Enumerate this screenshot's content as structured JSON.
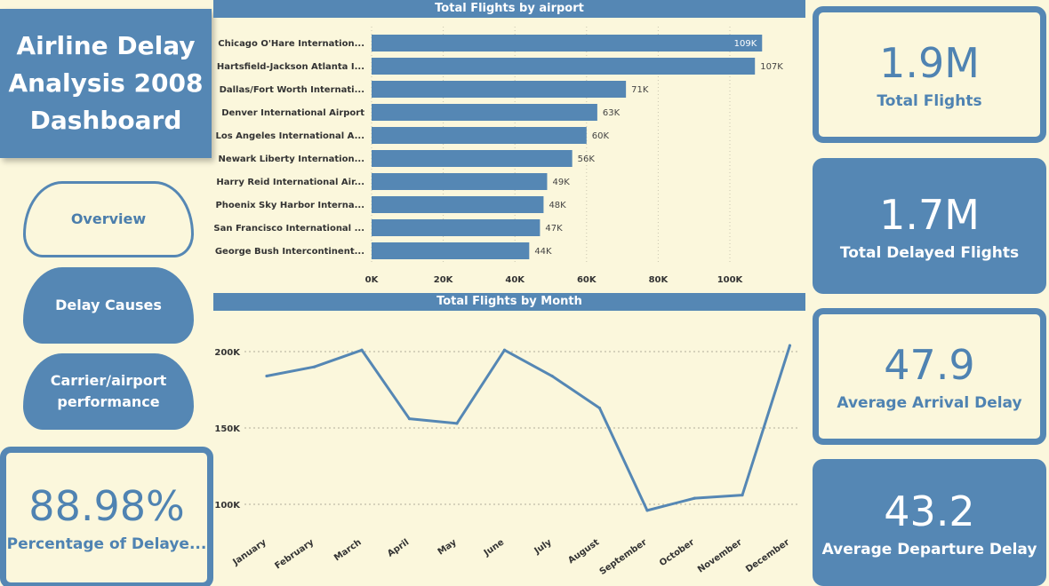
{
  "sidebar": {
    "title": "Airline Delay Analysis 2008 Dashboard",
    "nav": [
      {
        "label": "Overview"
      },
      {
        "label": "Delay Causes"
      },
      {
        "label": "Carrier/airport performance"
      }
    ],
    "kpi_percentage": {
      "value": "88.98%",
      "label": "Percentage of Delaye..."
    }
  },
  "kpis": [
    {
      "value": "1.9M",
      "label": "Total Flights"
    },
    {
      "value": "1.7M",
      "label": "Total Delayed Flights"
    },
    {
      "value": "47.9",
      "label": "Average Arrival Delay"
    },
    {
      "value": "43.2",
      "label": "Average Departure Delay"
    }
  ],
  "colors": {
    "accent": "#5587b4",
    "background": "#fbf7dc"
  },
  "chart_data": [
    {
      "type": "bar",
      "title": "Total Flights by airport",
      "categories": [
        "Chicago O'Hare Internation...",
        "Hartsfield-Jackson Atlanta I...",
        "Dallas/Fort Worth Internati...",
        "Denver International Airport",
        "Los Angeles International A...",
        "Newark Liberty Internation...",
        "Harry Reid International Air...",
        "Phoenix Sky Harbor Interna...",
        "San Francisco International ...",
        "George Bush Intercontinent..."
      ],
      "values": [
        109000,
        107000,
        71000,
        63000,
        60000,
        56000,
        49000,
        48000,
        47000,
        44000
      ],
      "data_labels": [
        "109K",
        "107K",
        "71K",
        "63K",
        "60K",
        "56K",
        "49K",
        "48K",
        "47K",
        "44K"
      ],
      "x_ticks": [
        "0K",
        "20K",
        "40K",
        "60K",
        "80K",
        "100K"
      ],
      "xlim": [
        0,
        114000
      ],
      "orientation": "horizontal",
      "grid": true
    },
    {
      "type": "line",
      "title": "Total Flights by Month",
      "x": [
        "January",
        "February",
        "March",
        "April",
        "May",
        "June",
        "July",
        "August",
        "September",
        "October",
        "November",
        "December"
      ],
      "values": [
        184000,
        190000,
        201000,
        156000,
        153000,
        201000,
        184000,
        163000,
        96000,
        104000,
        106000,
        204000
      ],
      "y_ticks": [
        "100K",
        "150K",
        "200K"
      ],
      "ylim": [
        90000,
        210000
      ],
      "grid": true
    }
  ]
}
